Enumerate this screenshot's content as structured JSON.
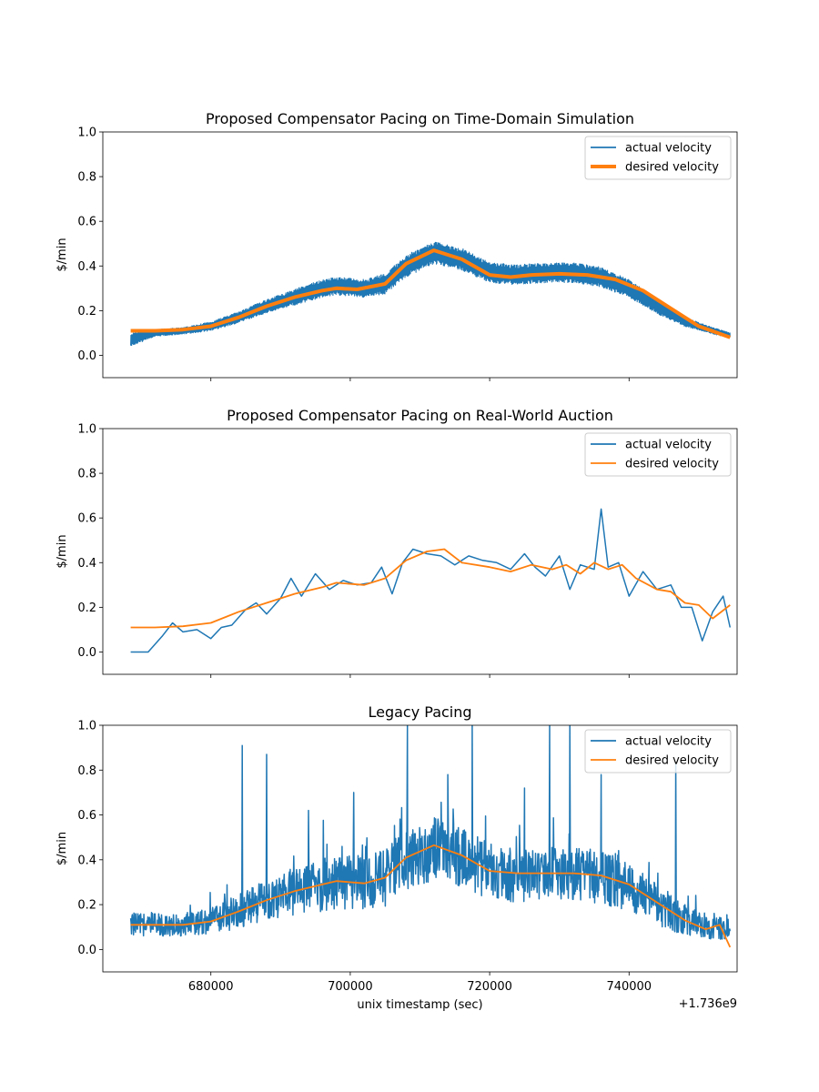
{
  "chart_data": [
    {
      "type": "line",
      "title": "Proposed Compensator Pacing on Time-Domain Simulation",
      "ylabel": "$/min",
      "ylim": [
        -0.1,
        1.0
      ],
      "yticks": [
        "0.0",
        "0.2",
        "0.4",
        "0.6",
        "0.8",
        "1.0"
      ],
      "xlim": [
        664500,
        755500
      ],
      "x_offset_label": "+1.736e9",
      "desired_velocity_width": "thick",
      "actual_noise": "dense band",
      "legend": {
        "position": "upper-right",
        "entries": [
          "actual velocity",
          "desired velocity"
        ]
      },
      "series": [
        {
          "name": "actual velocity",
          "color": "#1f77b4",
          "x": [
            668500,
            672000,
            676000,
            680000,
            684000,
            688000,
            692000,
            696000,
            698000,
            702000,
            705000,
            708000,
            712000,
            716000,
            720000,
            724000,
            728000,
            732000,
            736000,
            740000,
            744000,
            748000,
            752000,
            754500
          ],
          "center": [
            0.07,
            0.1,
            0.11,
            0.13,
            0.17,
            0.22,
            0.26,
            0.3,
            0.31,
            0.3,
            0.32,
            0.4,
            0.46,
            0.43,
            0.37,
            0.36,
            0.37,
            0.37,
            0.35,
            0.3,
            0.22,
            0.15,
            0.11,
            0.09
          ],
          "amplitude": [
            0.03,
            0.015,
            0.015,
            0.02,
            0.025,
            0.03,
            0.035,
            0.04,
            0.04,
            0.04,
            0.045,
            0.05,
            0.05,
            0.05,
            0.045,
            0.045,
            0.045,
            0.045,
            0.045,
            0.04,
            0.035,
            0.02,
            0.015,
            0.012
          ]
        },
        {
          "name": "desired velocity",
          "color": "#ff7f0e",
          "x": [
            668500,
            672000,
            676000,
            680000,
            684000,
            688000,
            692000,
            696000,
            698000,
            701000,
            705000,
            708000,
            712000,
            716000,
            720000,
            723000,
            726000,
            730000,
            734000,
            738000,
            742000,
            746000,
            750000,
            754500
          ],
          "y": [
            0.11,
            0.11,
            0.115,
            0.13,
            0.17,
            0.22,
            0.26,
            0.29,
            0.3,
            0.295,
            0.32,
            0.41,
            0.47,
            0.43,
            0.36,
            0.35,
            0.36,
            0.365,
            0.36,
            0.34,
            0.29,
            0.21,
            0.13,
            0.08
          ]
        }
      ]
    },
    {
      "type": "line",
      "title": "Proposed Compensator Pacing on Real-World Auction",
      "ylabel": "$/min",
      "ylim": [
        -0.1,
        1.0
      ],
      "yticks": [
        "0.0",
        "0.2",
        "0.4",
        "0.6",
        "0.8",
        "1.0"
      ],
      "xlim": [
        664500,
        755500
      ],
      "x_offset_label": "+1.736e9",
      "desired_velocity_width": "normal",
      "actual_noise": "jagged",
      "legend": {
        "position": "upper-right",
        "entries": [
          "actual velocity",
          "desired velocity"
        ]
      },
      "series": [
        {
          "name": "actual velocity",
          "color": "#1f77b4",
          "x": [
            668500,
            671000,
            673000,
            674500,
            676000,
            678000,
            680000,
            681500,
            683000,
            685000,
            686500,
            688000,
            690000,
            691500,
            693000,
            695000,
            697000,
            699000,
            701000,
            703000,
            704500,
            706000,
            707500,
            709000,
            711000,
            713000,
            715000,
            717000,
            719000,
            721000,
            723000,
            725000,
            726500,
            728000,
            730000,
            731500,
            733000,
            735000,
            736000,
            737000,
            738500,
            740000,
            742000,
            744000,
            746000,
            747500,
            749000,
            750500,
            752000,
            753500,
            754500
          ],
          "y": [
            0.0,
            0.0,
            0.07,
            0.13,
            0.09,
            0.1,
            0.06,
            0.11,
            0.12,
            0.19,
            0.22,
            0.17,
            0.24,
            0.33,
            0.25,
            0.35,
            0.28,
            0.32,
            0.3,
            0.31,
            0.38,
            0.26,
            0.4,
            0.46,
            0.44,
            0.43,
            0.39,
            0.43,
            0.41,
            0.4,
            0.37,
            0.44,
            0.38,
            0.34,
            0.43,
            0.28,
            0.39,
            0.37,
            0.64,
            0.38,
            0.4,
            0.25,
            0.36,
            0.28,
            0.3,
            0.2,
            0.2,
            0.05,
            0.18,
            0.25,
            0.11
          ]
        },
        {
          "name": "desired velocity",
          "color": "#ff7f0e",
          "x": [
            668500,
            672000,
            676000,
            680000,
            684000,
            688000,
            692000,
            696000,
            698000,
            702000,
            705000,
            708000,
            711000,
            713500,
            716000,
            720000,
            723000,
            726000,
            729000,
            731000,
            733000,
            735000,
            737000,
            739000,
            741000,
            744000,
            746000,
            748000,
            750000,
            752000,
            754500
          ],
          "y": [
            0.11,
            0.11,
            0.115,
            0.13,
            0.18,
            0.22,
            0.26,
            0.29,
            0.31,
            0.3,
            0.33,
            0.41,
            0.45,
            0.46,
            0.4,
            0.38,
            0.36,
            0.39,
            0.37,
            0.39,
            0.35,
            0.4,
            0.37,
            0.39,
            0.33,
            0.28,
            0.27,
            0.22,
            0.21,
            0.15,
            0.21
          ]
        }
      ]
    },
    {
      "type": "line",
      "title": "Legacy Pacing",
      "xlabel": "unix timestamp (sec)",
      "ylabel": "$/min",
      "ylim": [
        -0.1,
        1.0
      ],
      "yticks": [
        "0.0",
        "0.2",
        "0.4",
        "0.6",
        "0.8",
        "1.0"
      ],
      "xlim": [
        664500,
        755500
      ],
      "xticks": [
        680000,
        700000,
        720000,
        740000
      ],
      "xtick_labels": [
        "680000",
        "700000",
        "720000",
        "740000"
      ],
      "x_offset_label": "+1.736e9",
      "desired_velocity_width": "normal",
      "actual_noise": "very noisy",
      "legend": {
        "position": "upper-right",
        "entries": [
          "actual velocity",
          "desired velocity"
        ]
      },
      "series": [
        {
          "name": "actual velocity",
          "color": "#1f77b4",
          "x": [
            668500,
            672000,
            676000,
            680000,
            684000,
            688000,
            692000,
            696000,
            698000,
            702000,
            705000,
            708000,
            712000,
            716000,
            720000,
            724000,
            728000,
            732000,
            736000,
            740000,
            744000,
            748000,
            752000,
            754500
          ],
          "center": [
            0.11,
            0.11,
            0.11,
            0.13,
            0.17,
            0.22,
            0.26,
            0.29,
            0.3,
            0.3,
            0.32,
            0.4,
            0.45,
            0.41,
            0.35,
            0.33,
            0.34,
            0.34,
            0.32,
            0.28,
            0.2,
            0.13,
            0.09,
            0.1
          ],
          "amplitude": [
            0.05,
            0.05,
            0.05,
            0.06,
            0.08,
            0.09,
            0.11,
            0.12,
            0.12,
            0.12,
            0.13,
            0.14,
            0.14,
            0.13,
            0.13,
            0.12,
            0.12,
            0.12,
            0.12,
            0.11,
            0.09,
            0.07,
            0.05,
            0.05
          ],
          "spikes": [
            [
              684500,
              0.91
            ],
            [
              688000,
              0.87
            ],
            [
              694000,
              0.62
            ],
            [
              700500,
              0.7
            ],
            [
              708200,
              1.0
            ],
            [
              714000,
              0.78
            ],
            [
              717500,
              1.0
            ],
            [
              725000,
              0.72
            ],
            [
              728600,
              1.0
            ],
            [
              731500,
              1.0
            ],
            [
              736000,
              0.78
            ],
            [
              746700,
              0.83
            ]
          ]
        },
        {
          "name": "desired velocity",
          "color": "#ff7f0e",
          "x": [
            668500,
            672000,
            676000,
            680000,
            684000,
            688000,
            692000,
            696000,
            698000,
            702000,
            705000,
            708000,
            712000,
            716000,
            720000,
            724000,
            728000,
            732000,
            736000,
            740000,
            744000,
            748000,
            751000,
            753000,
            754500
          ],
          "y": [
            0.11,
            0.11,
            0.11,
            0.125,
            0.17,
            0.22,
            0.26,
            0.29,
            0.305,
            0.295,
            0.32,
            0.41,
            0.465,
            0.42,
            0.35,
            0.34,
            0.34,
            0.34,
            0.33,
            0.29,
            0.21,
            0.13,
            0.09,
            0.11,
            0.01
          ]
        }
      ]
    }
  ]
}
